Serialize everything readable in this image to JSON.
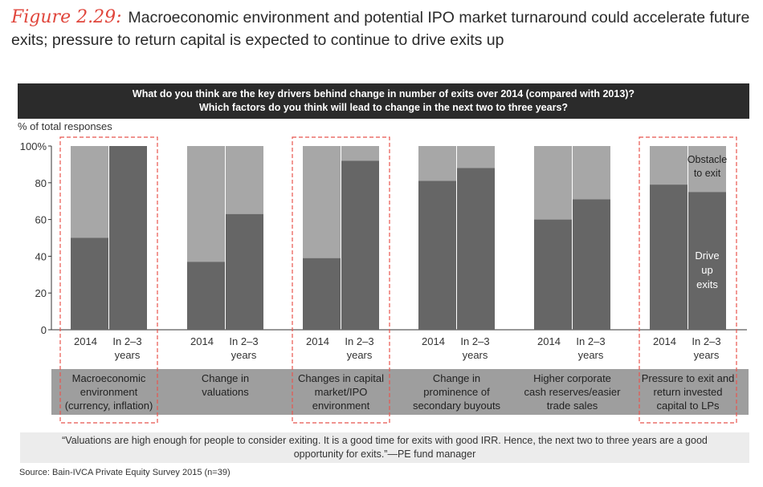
{
  "figure": {
    "label": "Figure 2.29:",
    "title": "Macroeconomic environment and potential IPO market turnaround could accelerate future exits; pressure to return capital is expected to continue to drive exits up"
  },
  "question": {
    "line1": "What do you think are the key drivers behind change in number of exits over 2014 (compared with 2013)?",
    "line2": "Which factors do you think will lead to change in the next two to three years?"
  },
  "quote": "“Valuations are high enough for people to consider exiting. It is a good time for exits with good IRR. Hence, the next two to three years are a good opportunity for exits.”—PE fund manager",
  "source": "Source: Bain-IVCA Private Equity Survey 2015 (n=39)",
  "colors": {
    "drive_up": "#666666",
    "obstacle": "#a7a7a7",
    "category_band": "#9e9e9e",
    "highlight": "#e8554e",
    "header": "#2b2b2b"
  },
  "chart_data": {
    "type": "bar",
    "stacked": true,
    "ylabel": "% of total responses",
    "ylim": [
      0,
      100
    ],
    "yticks": [
      "0",
      "20",
      "40",
      "60",
      "80",
      "100%"
    ],
    "bar_labels": [
      [
        "2014"
      ],
      [
        "In 2–3",
        "years"
      ]
    ],
    "series_labels": {
      "obstacle": [
        "Obstacle",
        "to exit"
      ],
      "drive_up": [
        "Drive",
        "up",
        "exits"
      ]
    },
    "categories": [
      {
        "name": [
          "Macroeconomic",
          "environment",
          "(currency, inflation)"
        ],
        "drive_up": [
          50,
          100
        ],
        "highlighted": true
      },
      {
        "name": [
          "Change in",
          "valuations"
        ],
        "drive_up": [
          37,
          63
        ],
        "highlighted": false
      },
      {
        "name": [
          "Changes in capital",
          "market/IPO",
          "environment"
        ],
        "drive_up": [
          39,
          92
        ],
        "highlighted": true
      },
      {
        "name": [
          "Change in",
          "prominence of",
          "secondary buyouts"
        ],
        "drive_up": [
          81,
          88
        ],
        "highlighted": false
      },
      {
        "name": [
          "Higher corporate",
          "cash reserves/easier",
          "trade sales"
        ],
        "drive_up": [
          60,
          71
        ],
        "highlighted": false
      },
      {
        "name": [
          "Pressure to exit and",
          "return invested",
          "capital to LPs"
        ],
        "drive_up": [
          79,
          75
        ],
        "highlighted": true
      }
    ],
    "series": [
      {
        "name": "Drive up exits",
        "color": "#666666"
      },
      {
        "name": "Obstacle to exit",
        "color": "#a7a7a7"
      }
    ]
  }
}
